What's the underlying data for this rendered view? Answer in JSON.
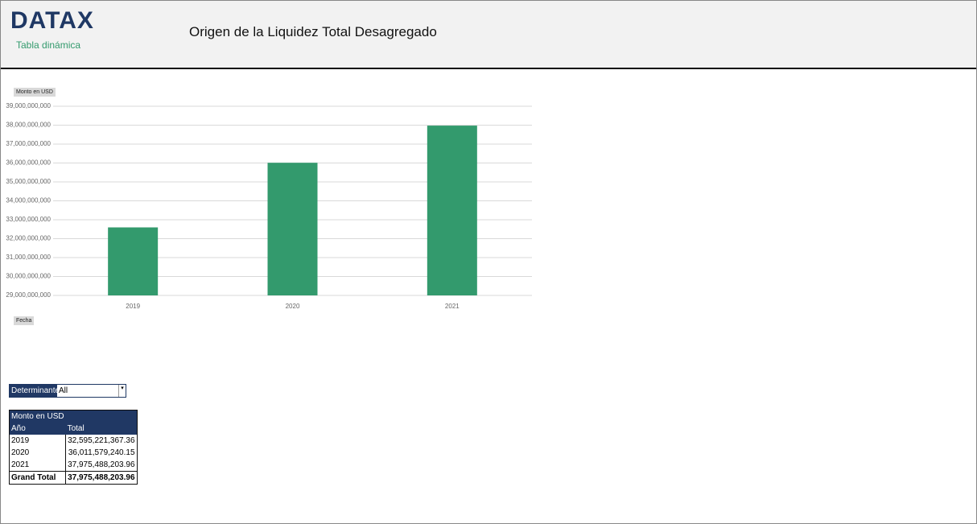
{
  "header": {
    "logo": "DATAX",
    "subtitle": "Tabla dinámica",
    "title": "Origen de la Liquidez Total Desagregado"
  },
  "chart_data": {
    "type": "bar",
    "y_field_button": "Monto en USD",
    "x_field_button": "Fecha",
    "categories": [
      "2019",
      "2020",
      "2021"
    ],
    "values": [
      32595221367.36,
      36011579240.15,
      37975488203.96
    ],
    "color": "#339a6d",
    "ylim": [
      29000000000,
      39000000000
    ],
    "yticks": [
      {
        "value": 29000000000,
        "label": "29,000,000,000"
      },
      {
        "value": 30000000000,
        "label": "30,000,000,000"
      },
      {
        "value": 31000000000,
        "label": "31,000,000,000"
      },
      {
        "value": 32000000000,
        "label": "32,000,000,000"
      },
      {
        "value": 33000000000,
        "label": "33,000,000,000"
      },
      {
        "value": 34000000000,
        "label": "34,000,000,000"
      },
      {
        "value": 35000000000,
        "label": "35,000,000,000"
      },
      {
        "value": 36000000000,
        "label": "36,000,000,000"
      },
      {
        "value": 37000000000,
        "label": "37,000,000,000"
      },
      {
        "value": 38000000000,
        "label": "38,000,000,000"
      },
      {
        "value": 39000000000,
        "label": "39,000,000,000"
      }
    ],
    "grid": true
  },
  "filter": {
    "label": "Determinante",
    "value": "All"
  },
  "table": {
    "caption": "Monto en USD",
    "columns": [
      "Año",
      "Total"
    ],
    "rows": [
      [
        "2019",
        "32,595,221,367.36"
      ],
      [
        "2020",
        "36,011,579,240.15"
      ],
      [
        "2021",
        "37,975,488,203.96"
      ]
    ],
    "total": [
      "Grand Total",
      "37,975,488,203.96"
    ]
  }
}
